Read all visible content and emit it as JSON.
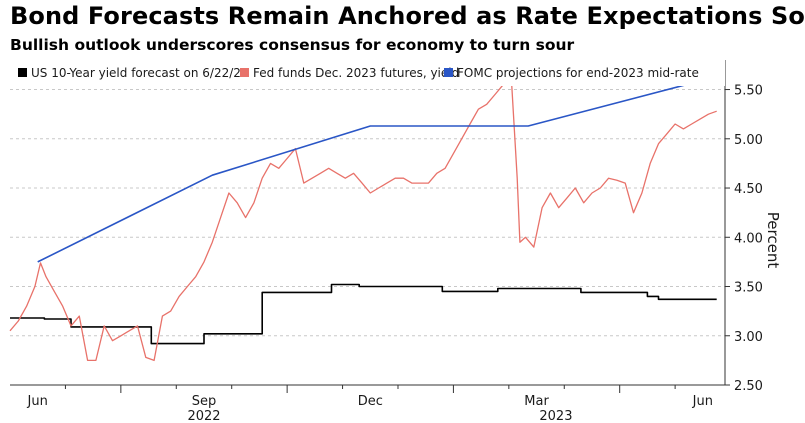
{
  "chart_data": {
    "type": "line",
    "title": "Bond Forecasts Remain Anchored as Rate Expectations Soar",
    "subtitle": "Bullish outlook underscores consensus for economy to turn sour",
    "ylabel": "Percent",
    "ylim": [
      2.5,
      5.8
    ],
    "yticks": [
      2.5,
      3.0,
      3.5,
      4.0,
      4.5,
      5.0,
      5.5
    ],
    "ytick_labels": [
      "2.50",
      "3.00",
      "3.50",
      "4.00",
      "4.50",
      "5.00",
      "5.50"
    ],
    "xlim": [
      0,
      12.9
    ],
    "xtick_positions": [
      0.5,
      3.5,
      6.5,
      9.5,
      12.5
    ],
    "xtick_labels": [
      "Jun",
      "Sep",
      "Dec",
      "Mar",
      "Jun"
    ],
    "year_labels": [
      {
        "label": "2022",
        "x": 3.5
      },
      {
        "label": "2023",
        "x": 9.85
      }
    ],
    "grid": "horizontal dashed",
    "legend_position": "top",
    "series": [
      {
        "name": "US 10-Year yield forecast on 6/22/23",
        "color": "#000000",
        "x": [
          0,
          0.62,
          0.62,
          1.1,
          1.1,
          2.55,
          2.55,
          3.5,
          3.5,
          4.55,
          4.55,
          5.8,
          5.8,
          6.3,
          6.3,
          7.8,
          7.8,
          8.8,
          8.8,
          10.3,
          10.3,
          11.5,
          11.5,
          11.7,
          11.7,
          12.75
        ],
        "values": [
          3.18,
          3.18,
          3.17,
          3.17,
          3.09,
          3.09,
          2.92,
          2.92,
          3.02,
          3.02,
          3.44,
          3.44,
          3.52,
          3.52,
          3.5,
          3.5,
          3.45,
          3.45,
          3.48,
          3.48,
          3.44,
          3.44,
          3.4,
          3.4,
          3.37,
          3.37
        ]
      },
      {
        "name": "Fed funds Dec. 2023 futures, yield",
        "color": "#e8726a",
        "x": [
          0,
          0.15,
          0.3,
          0.45,
          0.55,
          0.65,
          0.8,
          0.95,
          1.1,
          1.25,
          1.4,
          1.55,
          1.7,
          1.85,
          2.0,
          2.15,
          2.3,
          2.45,
          2.6,
          2.75,
          2.9,
          3.05,
          3.2,
          3.35,
          3.5,
          3.65,
          3.8,
          3.95,
          4.1,
          4.25,
          4.4,
          4.55,
          4.7,
          4.85,
          5.0,
          5.15,
          5.3,
          5.45,
          5.6,
          5.75,
          5.9,
          6.05,
          6.2,
          6.35,
          6.5,
          6.65,
          6.8,
          6.95,
          7.1,
          7.25,
          7.4,
          7.55,
          7.7,
          7.85,
          8.0,
          8.15,
          8.3,
          8.45,
          8.6,
          8.75,
          8.9,
          9.05,
          9.15,
          9.2,
          9.3,
          9.45,
          9.6,
          9.75,
          9.9,
          10.05,
          10.2,
          10.35,
          10.5,
          10.65,
          10.8,
          10.95,
          11.1,
          11.25,
          11.4,
          11.55,
          11.7,
          11.85,
          12.0,
          12.15,
          12.3,
          12.45,
          12.6,
          12.75
        ],
        "values": [
          3.05,
          3.15,
          3.3,
          3.5,
          3.74,
          3.6,
          3.45,
          3.3,
          3.1,
          3.2,
          2.75,
          2.75,
          3.1,
          2.95,
          3.0,
          3.05,
          3.1,
          2.78,
          2.75,
          3.2,
          3.25,
          3.4,
          3.5,
          3.6,
          3.75,
          3.95,
          4.2,
          4.45,
          4.35,
          4.2,
          4.35,
          4.6,
          4.75,
          4.7,
          4.8,
          4.9,
          4.55,
          4.6,
          4.65,
          4.7,
          4.65,
          4.6,
          4.65,
          4.55,
          4.45,
          4.5,
          4.55,
          4.6,
          4.6,
          4.55,
          4.55,
          4.55,
          4.65,
          4.7,
          4.85,
          5.0,
          5.15,
          5.3,
          5.35,
          5.45,
          5.55,
          5.57,
          4.6,
          3.95,
          4.0,
          3.9,
          4.3,
          4.45,
          4.3,
          4.4,
          4.5,
          4.35,
          4.45,
          4.5,
          4.6,
          4.58,
          4.55,
          4.25,
          4.45,
          4.75,
          4.95,
          5.05,
          5.15,
          5.1,
          5.15,
          5.2,
          5.25,
          5.28
        ]
      },
      {
        "name": "FOMC projections for end-2023 mid-rate",
        "color": "#2a56c6",
        "x": [
          0.5,
          3.65,
          6.5,
          9.35,
          12.75
        ],
        "values": [
          3.75,
          4.63,
          5.13,
          5.13,
          5.63
        ]
      }
    ]
  }
}
